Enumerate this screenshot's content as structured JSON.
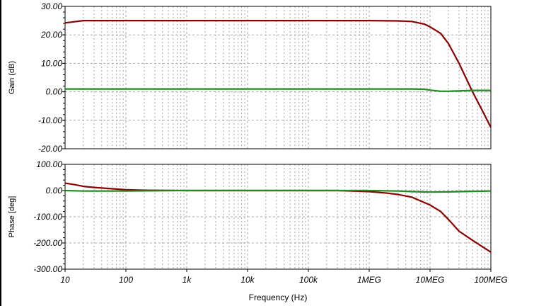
{
  "chart_data": [
    {
      "type": "line",
      "ylabel": "Gain (dB)",
      "xlabel": "",
      "xscale": "log",
      "xlim": [
        10,
        100000000
      ],
      "ylim": [
        -20,
        30
      ],
      "yticks": [
        30,
        20,
        10,
        0,
        -10,
        -20
      ],
      "ytick_labels": [
        "30.00",
        "20.00",
        "10.00",
        "0.00",
        "-10.00",
        "-20.00"
      ],
      "grid": true,
      "series": [
        {
          "color": "#8B0000",
          "x": [
            10,
            20,
            100,
            1000,
            10000,
            100000,
            1000000,
            3000000,
            5000000,
            8000000,
            10000000,
            15000000,
            20000000,
            30000000,
            50000000,
            70000000,
            100000000
          ],
          "y": [
            24.2,
            25.0,
            25.0,
            25.0,
            25.0,
            25.0,
            25.0,
            24.9,
            24.7,
            23.8,
            22.8,
            20.5,
            17.0,
            10.0,
            0.0,
            -6.0,
            -12.5
          ]
        },
        {
          "color": "#228B22",
          "x": [
            10,
            100,
            1000,
            10000,
            100000,
            1000000,
            5000000,
            8000000,
            10000000,
            15000000,
            20000000,
            30000000,
            50000000,
            100000000
          ],
          "y": [
            1.0,
            1.0,
            1.0,
            1.0,
            1.0,
            1.0,
            1.0,
            0.9,
            0.6,
            0.2,
            0.2,
            0.3,
            0.5,
            0.5
          ]
        }
      ]
    },
    {
      "type": "line",
      "ylabel": "Phase [deg]",
      "xlabel": "Frequency (Hz)",
      "xscale": "log",
      "xlim": [
        10,
        100000000
      ],
      "ylim": [
        -300,
        100
      ],
      "yticks": [
        100,
        0,
        -100,
        -200,
        -300
      ],
      "ytick_labels": [
        "100.00",
        "0.00",
        "-100.00",
        "-200.00",
        "-300.00"
      ],
      "xticks": [
        10,
        100,
        1000,
        10000,
        100000,
        1000000,
        10000000,
        100000000
      ],
      "xtick_labels": [
        "10",
        "100",
        "1k",
        "10k",
        "100k",
        "1MEG",
        "10MEG",
        "100MEG"
      ],
      "grid": true,
      "series": [
        {
          "color": "#8B0000",
          "x": [
            10,
            15,
            20,
            30,
            50,
            100,
            200,
            1000,
            10000,
            100000,
            300000,
            1000000,
            2000000,
            3000000,
            5000000,
            10000000,
            15000000,
            20000000,
            30000000,
            50000000,
            70000000,
            100000000
          ],
          "y": [
            28,
            22,
            16,
            12,
            8,
            3,
            1,
            0,
            0,
            0,
            0,
            -4,
            -10,
            -15,
            -25,
            -55,
            -80,
            -110,
            -155,
            -190,
            -212,
            -235
          ]
        },
        {
          "color": "#228B22",
          "x": [
            10,
            20,
            100,
            1000,
            10000,
            100000,
            1000000,
            3000000,
            5000000,
            10000000,
            20000000,
            50000000,
            100000000
          ],
          "y": [
            0,
            -2,
            -2,
            0,
            0,
            0,
            0,
            -2,
            -4,
            -6,
            -5,
            -3,
            -2
          ]
        }
      ]
    }
  ]
}
